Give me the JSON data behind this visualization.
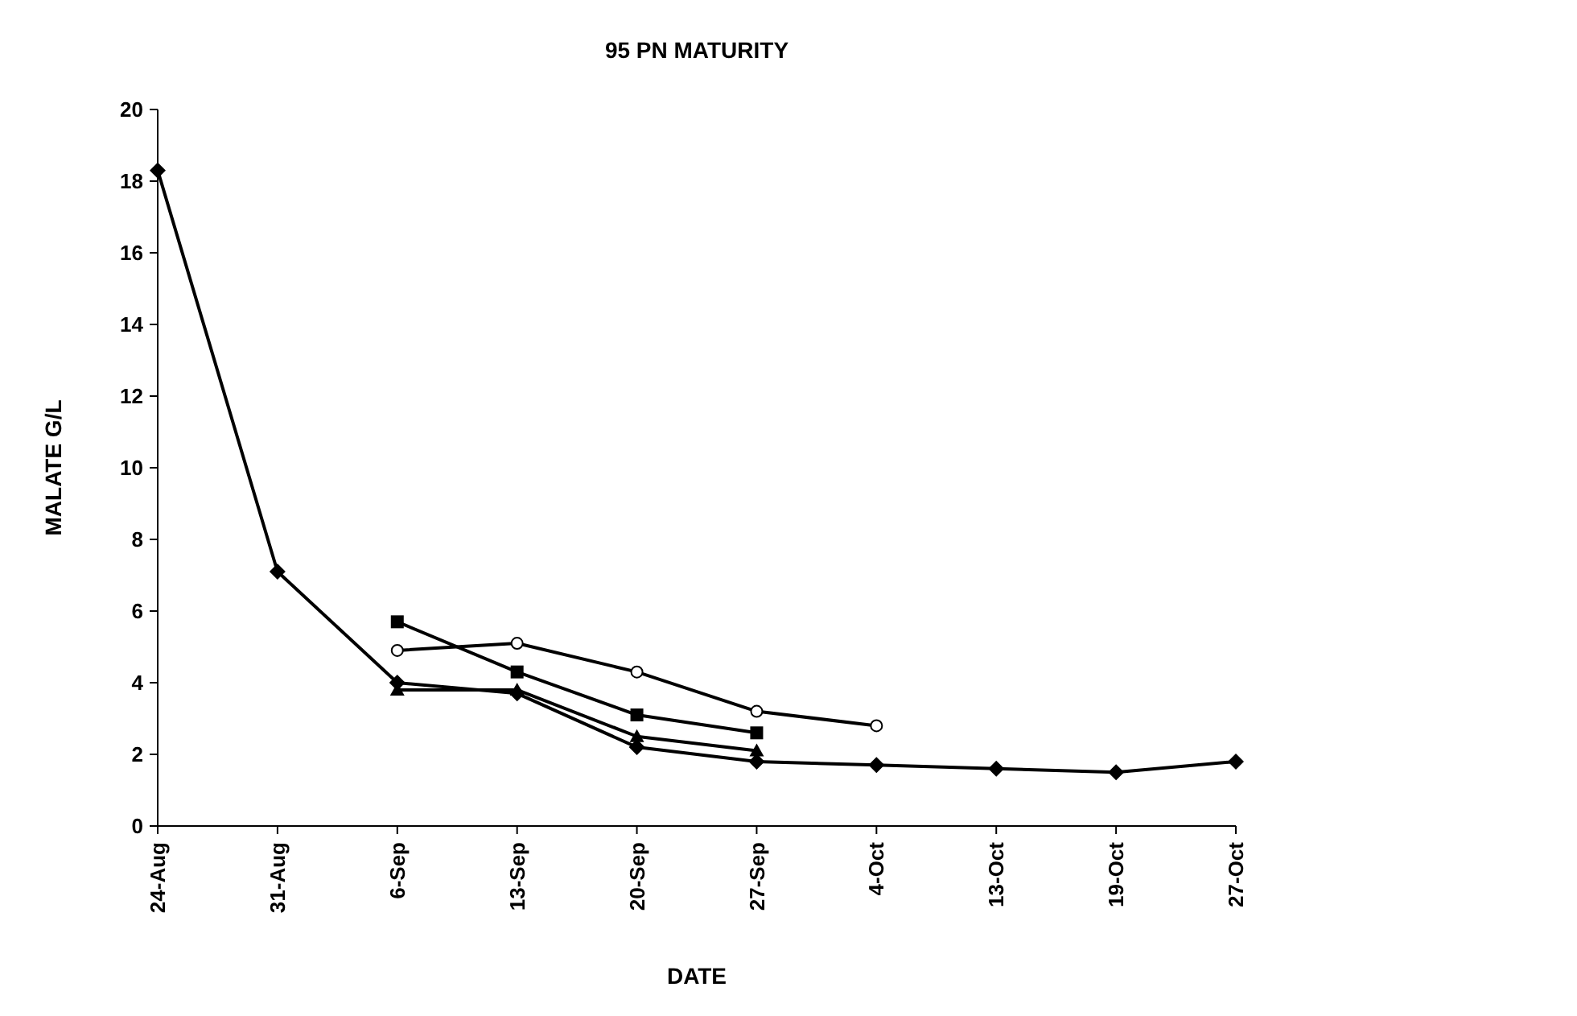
{
  "chart_data": {
    "type": "line",
    "title": "95 PN MATURITY",
    "xlabel": "DATE",
    "ylabel": "MALATE G/L",
    "categories": [
      "24-Aug",
      "31-Aug",
      "6-Sep",
      "13-Sep",
      "20-Sep",
      "27-Sep",
      "4-Oct",
      "13-Oct",
      "19-Oct",
      "27-Oct"
    ],
    "ylim": [
      0,
      20
    ],
    "yticks": [
      0,
      2,
      4,
      6,
      8,
      10,
      12,
      14,
      16,
      18,
      20
    ],
    "grid": false,
    "series": [
      {
        "color": "#000000",
        "marker": "diamond",
        "values": [
          18.3,
          7.1,
          4.0,
          3.7,
          2.2,
          1.8,
          1.7,
          1.6,
          1.5,
          1.8
        ]
      },
      {
        "color": "#000000",
        "marker": "square",
        "values": [
          null,
          null,
          5.7,
          4.3,
          3.1,
          2.6,
          null,
          null,
          null,
          null
        ]
      },
      {
        "color": "#000000",
        "marker": "triangle",
        "values": [
          null,
          null,
          3.8,
          3.8,
          2.5,
          2.1,
          null,
          null,
          null,
          null
        ]
      },
      {
        "color": "#000000",
        "marker": "circle",
        "values": [
          null,
          null,
          4.9,
          5.1,
          4.3,
          3.2,
          2.8,
          null,
          null,
          null
        ]
      }
    ]
  }
}
